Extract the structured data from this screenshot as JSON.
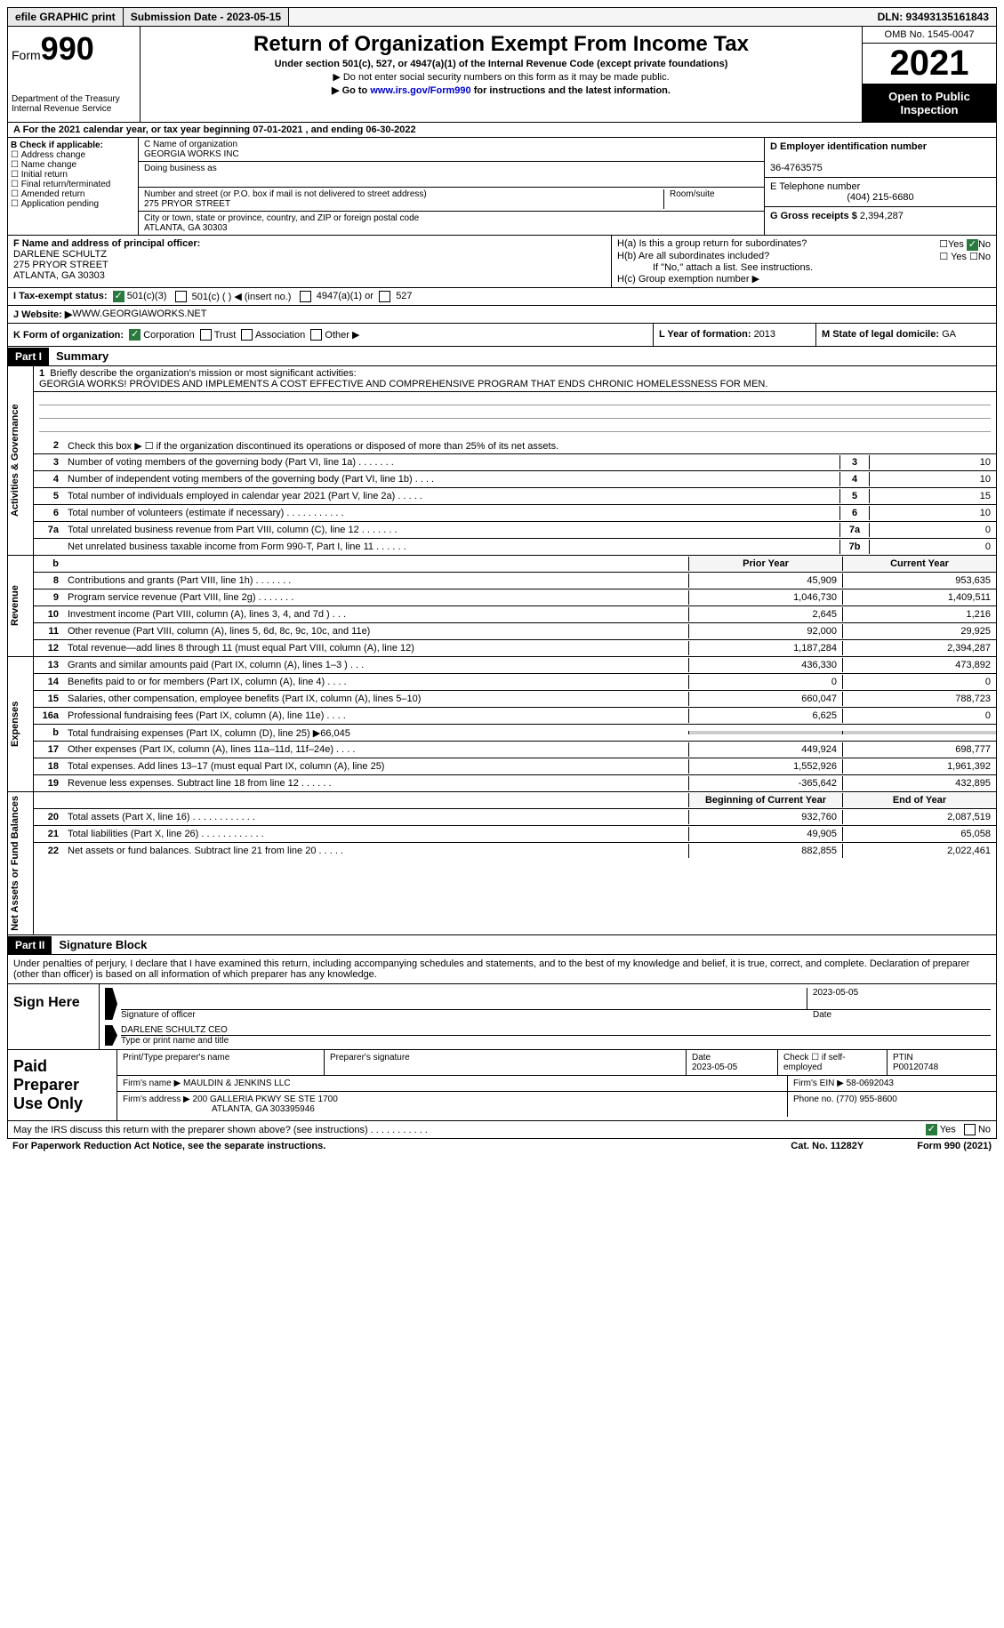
{
  "topbar": {
    "efile": "efile GRAPHIC print",
    "submission": "Submission Date - 2023-05-15",
    "dln": "DLN: 93493135161843"
  },
  "header": {
    "form_label": "Form",
    "form_num": "990",
    "dept": "Department of the Treasury\nInternal Revenue Service",
    "title": "Return of Organization Exempt From Income Tax",
    "subtitle": "Under section 501(c), 527, or 4947(a)(1) of the Internal Revenue Code (except private foundations)",
    "note1": "▶ Do not enter social security numbers on this form as it may be made public.",
    "note2_pre": "▶ Go to ",
    "note2_link": "www.irs.gov/Form990",
    "note2_post": " for instructions and the latest information.",
    "omb": "OMB No. 1545-0047",
    "year": "2021",
    "inspect": "Open to Public Inspection"
  },
  "row_A": "A For the 2021 calendar year, or tax year beginning 07-01-2021   , and ending 06-30-2022",
  "section_B": {
    "label": "B Check if applicable:",
    "items": [
      "Address change",
      "Name change",
      "Initial return",
      "Final return/terminated",
      "Amended return",
      "Application pending"
    ]
  },
  "section_C": {
    "name_label": "C Name of organization",
    "name": "GEORGIA WORKS INC",
    "dba_label": "Doing business as",
    "addr_label": "Number and street (or P.O. box if mail is not delivered to street address)",
    "addr": "275 PRYOR STREET",
    "room_label": "Room/suite",
    "city_label": "City or town, state or province, country, and ZIP or foreign postal code",
    "city": "ATLANTA, GA  30303"
  },
  "section_D": {
    "ein_label": "D Employer identification number",
    "ein": "36-4763575",
    "phone_label": "E Telephone number",
    "phone": "(404) 215-6680",
    "gross_label": "G Gross receipts $ ",
    "gross": "2,394,287"
  },
  "section_F": {
    "label": "F  Name and address of principal officer:",
    "name": "DARLENE SCHULTZ",
    "addr1": "275 PRYOR STREET",
    "addr2": "ATLANTA, GA  30303"
  },
  "section_H": {
    "ha": "H(a)  Is this a group return for subordinates?",
    "hb": "H(b)  Are all subordinates included?",
    "hb_note": "If \"No,\" attach a list. See instructions.",
    "hc": "H(c)  Group exemption number ▶"
  },
  "row_I": {
    "label": "I   Tax-exempt status:",
    "opts": [
      "501(c)(3)",
      "501(c) (  ) ◀ (insert no.)",
      "4947(a)(1) or",
      "527"
    ]
  },
  "row_J": {
    "label": "J   Website: ▶",
    "val": "  WWW.GEORGIAWORKS.NET"
  },
  "row_K": {
    "label": "K Form of organization:",
    "opts": [
      "Corporation",
      "Trust",
      "Association",
      "Other ▶"
    ],
    "L_label": "L Year of formation: ",
    "L_val": "2013",
    "M_label": "M State of legal domicile: ",
    "M_val": "GA"
  },
  "parts": {
    "p1": "Part I",
    "p1_title": "Summary",
    "p2": "Part II",
    "p2_title": "Signature Block"
  },
  "summary": {
    "line1_label": "Briefly describe the organization's mission or most significant activities:",
    "mission": "GEORGIA WORKS! PROVIDES AND IMPLEMENTS A COST EFFECTIVE AND COMPREHENSIVE PROGRAM THAT ENDS CHRONIC HOMELESSNESS FOR MEN.",
    "line2": "Check this box ▶ ☐  if the organization discontinued its operations or disposed of more than 25% of its net assets.",
    "tabs": {
      "t1": "Activities & Governance",
      "t2": "Revenue",
      "t3": "Expenses",
      "t4": "Net Assets or Fund Balances"
    },
    "rows_single": [
      {
        "n": "3",
        "d": "Number of voting members of the governing body (Part VI, line 1a)   .    .    .    .    .    .    .",
        "box": "3",
        "v": "10"
      },
      {
        "n": "4",
        "d": "Number of independent voting members of the governing body (Part VI, line 1b)   .    .    .    .",
        "box": "4",
        "v": "10"
      },
      {
        "n": "5",
        "d": "Total number of individuals employed in calendar year 2021 (Part V, line 2a)   .    .    .    .    .",
        "box": "5",
        "v": "15"
      },
      {
        "n": "6",
        "d": "Total number of volunteers (estimate if necessary)    .    .    .    .    .    .    .    .    .    .    .",
        "box": "6",
        "v": "10"
      },
      {
        "n": "7a",
        "d": "Total unrelated business revenue from Part VIII, column (C), line 12    .    .    .    .    .    .    .",
        "box": "7a",
        "v": "0"
      },
      {
        "n": "",
        "d": "Net unrelated business taxable income from Form 990-T, Part I, line 11   .    .    .    .    .    .",
        "box": "7b",
        "v": "0"
      }
    ],
    "hdr_prior": "Prior Year",
    "hdr_current": "Current Year",
    "revenue": [
      {
        "n": "8",
        "d": "Contributions and grants (Part VIII, line 1h)    .    .    .    .    .    .    .",
        "p": "45,909",
        "c": "953,635"
      },
      {
        "n": "9",
        "d": "Program service revenue (Part VIII, line 2g)    .    .    .    .    .    .    .",
        "p": "1,046,730",
        "c": "1,409,511"
      },
      {
        "n": "10",
        "d": "Investment income (Part VIII, column (A), lines 3, 4, and 7d )   .    .    .",
        "p": "2,645",
        "c": "1,216"
      },
      {
        "n": "11",
        "d": "Other revenue (Part VIII, column (A), lines 5, 6d, 8c, 9c, 10c, and 11e)",
        "p": "92,000",
        "c": "29,925"
      },
      {
        "n": "12",
        "d": "Total revenue—add lines 8 through 11 (must equal Part VIII, column (A), line 12)",
        "p": "1,187,284",
        "c": "2,394,287"
      }
    ],
    "expenses": [
      {
        "n": "13",
        "d": "Grants and similar amounts paid (Part IX, column (A), lines 1–3 )   .    .    .",
        "p": "436,330",
        "c": "473,892"
      },
      {
        "n": "14",
        "d": "Benefits paid to or for members (Part IX, column (A), line 4)   .    .    .    .",
        "p": "0",
        "c": "0"
      },
      {
        "n": "15",
        "d": "Salaries, other compensation, employee benefits (Part IX, column (A), lines 5–10)",
        "p": "660,047",
        "c": "788,723"
      },
      {
        "n": "16a",
        "d": "Professional fundraising fees (Part IX, column (A), line 11e)    .    .    .    .",
        "p": "6,625",
        "c": "0"
      },
      {
        "n": "b",
        "d": "Total fundraising expenses (Part IX, column (D), line 25) ▶66,045",
        "p": "shade",
        "c": "shade"
      },
      {
        "n": "17",
        "d": "Other expenses (Part IX, column (A), lines 11a–11d, 11f–24e)   .    .    .    .",
        "p": "449,924",
        "c": "698,777"
      },
      {
        "n": "18",
        "d": "Total expenses. Add lines 13–17 (must equal Part IX, column (A), line 25)",
        "p": "1,552,926",
        "c": "1,961,392"
      },
      {
        "n": "19",
        "d": "Revenue less expenses. Subtract line 18 from line 12   .    .    .    .    .    .",
        "p": "-365,642",
        "c": "432,895"
      }
    ],
    "hdr_begin": "Beginning of Current Year",
    "hdr_end": "End of Year",
    "nafb": [
      {
        "n": "20",
        "d": "Total assets (Part X, line 16)   .    .    .    .    .    .    .    .    .    .    .    .",
        "p": "932,760",
        "c": "2,087,519"
      },
      {
        "n": "21",
        "d": "Total liabilities (Part X, line 26)   .    .    .    .    .    .    .    .    .    .    .    .",
        "p": "49,905",
        "c": "65,058"
      },
      {
        "n": "22",
        "d": "Net assets or fund balances. Subtract line 21 from line 20    .    .    .    .    .",
        "p": "882,855",
        "c": "2,022,461"
      }
    ]
  },
  "sig": {
    "declaration": "Under penalties of perjury, I declare that I have examined this return, including accompanying schedules and statements, and to the best of my knowledge and belief, it is true, correct, and complete. Declaration of preparer (other than officer) is based on all information of which preparer has any knowledge.",
    "sign_here": "Sign Here",
    "sig_officer": "Signature of officer",
    "date_label": "Date",
    "date": "2023-05-05",
    "name_title": "DARLENE SCHULTZ  CEO",
    "type_name": "Type or print name and title"
  },
  "prep": {
    "label": "Paid Preparer Use Only",
    "print_name": "Print/Type preparer's name",
    "prep_sig": "Preparer's signature",
    "date_label": "Date",
    "date": "2023-05-05",
    "check_self": "Check ☐ if self-employed",
    "ptin_label": "PTIN",
    "ptin": "P00120748",
    "firm_name_label": "Firm's name     ▶ ",
    "firm_name": "MAULDIN & JENKINS LLC",
    "firm_ein_label": "Firm's EIN ▶ ",
    "firm_ein": "58-0692043",
    "firm_addr_label": "Firm's address ▶ ",
    "firm_addr1": "200 GALLERIA PKWY SE STE 1700",
    "firm_addr2": "ATLANTA, GA  303395946",
    "phone_label": "Phone no. ",
    "phone": "(770) 955-8600"
  },
  "footer": {
    "discuss": "May the IRS discuss this return with the preparer shown above? (see instructions)    .    .    .    .    .    .    .    .    .    .    .",
    "yes": "Yes",
    "no": "No",
    "paperwork": "For Paperwork Reduction Act Notice, see the separate instructions.",
    "cat": "Cat. No. 11282Y",
    "form": "Form 990 (2021)"
  }
}
